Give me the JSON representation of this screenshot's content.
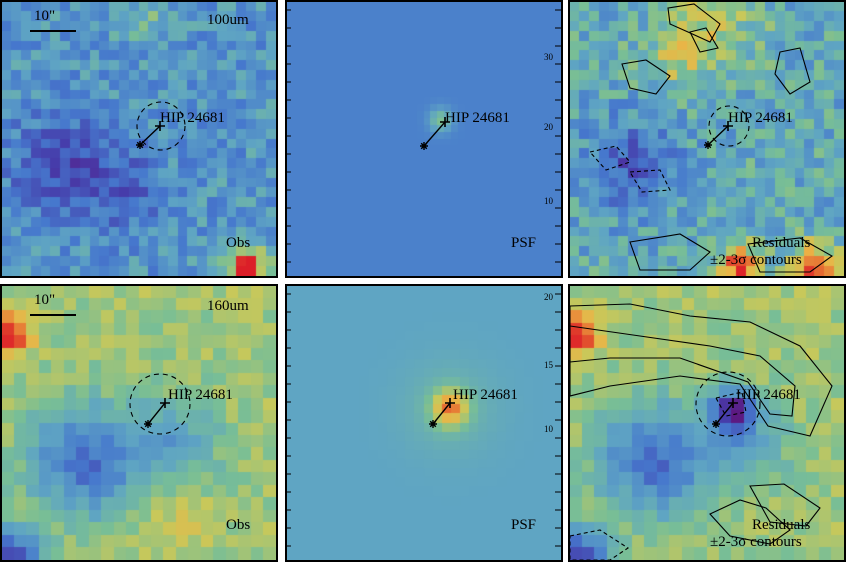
{
  "panels": [
    {
      "id": "p1",
      "band_label": "100um",
      "scale_label": "10\"",
      "star_label": "HIP 24681",
      "corner_label": "Obs"
    },
    {
      "id": "p2",
      "star_label": "HIP 24681",
      "corner_label": "PSF"
    },
    {
      "id": "p3",
      "star_label": "HIP 24681",
      "corner_label_1": "Residuals",
      "corner_label_2": "±2-3σ contours"
    },
    {
      "id": "p4",
      "band_label": "160um",
      "scale_label": "10\"",
      "star_label": "HIP 24681",
      "corner_label": "Obs"
    },
    {
      "id": "p5",
      "star_label": "HIP 24681",
      "corner_label": "PSF"
    },
    {
      "id": "p6",
      "star_label": "HIP 24681",
      "corner_label_1": "Residuals",
      "corner_label_2": "±2-3σ contours"
    }
  ],
  "axis_ticks": {
    "p2_right": [
      "30",
      "20",
      "10"
    ],
    "p5_right": [
      "20",
      "15",
      "10"
    ]
  },
  "colors": {
    "border": "#000000",
    "colormap": "rainbow (purple-blue-green-yellow-red)"
  }
}
